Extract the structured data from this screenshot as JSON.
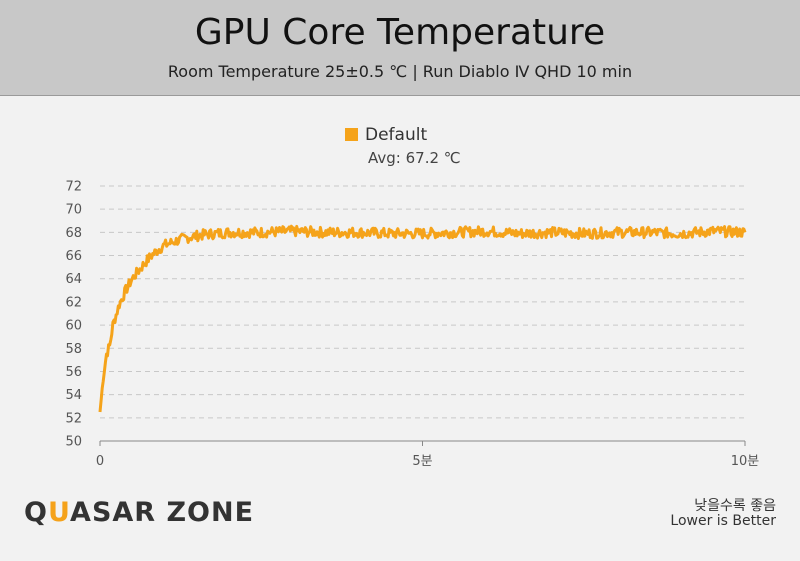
{
  "header": {
    "title": "GPU Core Temperature",
    "subtitle": "Room Temperature 25±0.5 ℃  | Run Diablo Ⅳ QHD 10 min"
  },
  "legend": {
    "label": "Default",
    "avg": "Avg: 67.2 ℃"
  },
  "colors": {
    "series": "#f5a31a",
    "grid": "#c8c8c8",
    "header_bg": "#c8c8c8",
    "background": "#f2f2f2"
  },
  "chart_data": {
    "type": "line",
    "title": "GPU Core Temperature",
    "subtitle": "Room Temperature 25±0.5 ℃  | Run Diablo Ⅳ QHD 10 min",
    "ylim": [
      50,
      72
    ],
    "yticks": [
      "50",
      "52",
      "54",
      "56",
      "58",
      "60",
      "62",
      "64",
      "66",
      "68",
      "70",
      "72"
    ],
    "xlim": [
      0,
      10
    ],
    "xticks": [
      {
        "value": 0,
        "label": "0"
      },
      {
        "value": 5,
        "label": "5분"
      },
      {
        "value": 10,
        "label": "10분"
      }
    ],
    "grid": true,
    "legend_position": "top-center",
    "series": [
      {
        "name": "Default",
        "x": [
          0,
          0.05,
          0.1,
          0.15,
          0.2,
          0.3,
          0.4,
          0.5,
          0.6,
          0.7,
          0.8,
          0.9,
          1.0,
          1.1,
          1.2,
          1.4,
          1.6,
          1.8,
          2.0,
          2.5,
          3.0,
          3.5,
          4.0,
          4.5,
          5.0,
          5.5,
          6.0,
          6.5,
          7.0,
          7.5,
          8.0,
          8.5,
          9.0,
          9.5,
          10.0
        ],
        "values": [
          52.5,
          55.5,
          57.5,
          58.2,
          60.0,
          61.8,
          63.0,
          64.0,
          64.7,
          65.4,
          66.0,
          66.5,
          66.9,
          67.1,
          67.3,
          67.6,
          67.8,
          67.9,
          68.0,
          68.0,
          68.1,
          68.0,
          68.0,
          67.9,
          67.9,
          68.0,
          68.1,
          67.9,
          68.0,
          67.9,
          68.0,
          68.0,
          67.9,
          68.1,
          68.0
        ]
      }
    ],
    "average_label": "Avg: 67.2 ℃"
  },
  "footer": {
    "logo_part1": "Q",
    "logo_part2": "U",
    "logo_part3": "ASAR ZONE",
    "note_korean": "낮을수록 좋음",
    "note_english": "Lower is Better"
  }
}
